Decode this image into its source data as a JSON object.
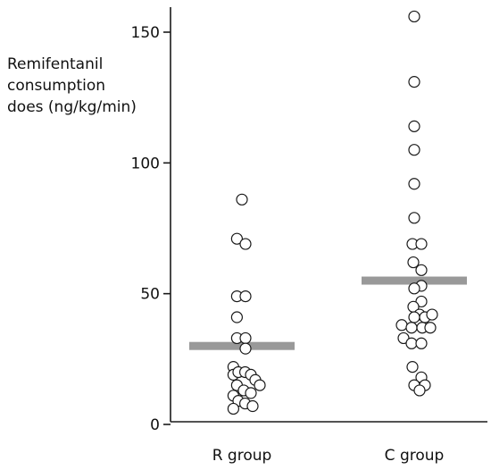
{
  "chart_data": {
    "type": "scatter",
    "title": "",
    "ylabel_lines": [
      "Remifentanil",
      "consumption",
      "does (ng/kg/min)"
    ],
    "xlabel": "",
    "ylim": [
      0,
      160
    ],
    "yticks": [
      0,
      50,
      100,
      150
    ],
    "categories": [
      "R group",
      "C group"
    ],
    "grid": false,
    "colors": {
      "marker_edge": "#1a1a1a",
      "marker_fill": "#ffffff",
      "mean_bar": "#999999",
      "axis": "#1a1a1a"
    },
    "series": [
      {
        "category": "R group",
        "mean": 30,
        "points": [
          {
            "offset": 0.0,
            "y": 86
          },
          {
            "offset": -0.28,
            "y": 71
          },
          {
            "offset": 0.2,
            "y": 69
          },
          {
            "offset": -0.28,
            "y": 49
          },
          {
            "offset": 0.2,
            "y": 49
          },
          {
            "offset": -0.28,
            "y": 41
          },
          {
            "offset": -0.28,
            "y": 33
          },
          {
            "offset": 0.2,
            "y": 33
          },
          {
            "offset": 0.2,
            "y": 29
          },
          {
            "offset": -0.48,
            "y": 22
          },
          {
            "offset": -0.48,
            "y": 19
          },
          {
            "offset": -0.2,
            "y": 20
          },
          {
            "offset": 0.18,
            "y": 20
          },
          {
            "offset": 0.5,
            "y": 19
          },
          {
            "offset": 0.75,
            "y": 17
          },
          {
            "offset": 1.0,
            "y": 15
          },
          {
            "offset": -0.28,
            "y": 15
          },
          {
            "offset": 0.1,
            "y": 13
          },
          {
            "offset": 0.5,
            "y": 12
          },
          {
            "offset": -0.48,
            "y": 11
          },
          {
            "offset": -0.2,
            "y": 9
          },
          {
            "offset": 0.18,
            "y": 8
          },
          {
            "offset": 0.6,
            "y": 7
          },
          {
            "offset": -0.48,
            "y": 6
          }
        ]
      },
      {
        "category": "C group",
        "mean": 55,
        "points": [
          {
            "offset": 0.0,
            "y": 156
          },
          {
            "offset": 0.0,
            "y": 131
          },
          {
            "offset": 0.0,
            "y": 114
          },
          {
            "offset": 0.0,
            "y": 105
          },
          {
            "offset": 0.0,
            "y": 92
          },
          {
            "offset": 0.0,
            "y": 79
          },
          {
            "offset": -0.1,
            "y": 69
          },
          {
            "offset": 0.4,
            "y": 69
          },
          {
            "offset": -0.05,
            "y": 62
          },
          {
            "offset": 0.4,
            "y": 59
          },
          {
            "offset": 0.4,
            "y": 53
          },
          {
            "offset": 0.0,
            "y": 52
          },
          {
            "offset": 0.4,
            "y": 47
          },
          {
            "offset": -0.05,
            "y": 45
          },
          {
            "offset": 0.3,
            "y": 42
          },
          {
            "offset": 0.0,
            "y": 41
          },
          {
            "offset": 0.6,
            "y": 41
          },
          {
            "offset": 1.0,
            "y": 42
          },
          {
            "offset": -0.7,
            "y": 38
          },
          {
            "offset": -0.15,
            "y": 37
          },
          {
            "offset": 0.45,
            "y": 37
          },
          {
            "offset": 0.9,
            "y": 37
          },
          {
            "offset": -0.6,
            "y": 33
          },
          {
            "offset": -0.15,
            "y": 31
          },
          {
            "offset": 0.4,
            "y": 31
          },
          {
            "offset": -0.1,
            "y": 22
          },
          {
            "offset": 0.4,
            "y": 18
          },
          {
            "offset": 0.0,
            "y": 15
          },
          {
            "offset": 0.6,
            "y": 15
          },
          {
            "offset": 0.3,
            "y": 13
          }
        ]
      }
    ]
  }
}
